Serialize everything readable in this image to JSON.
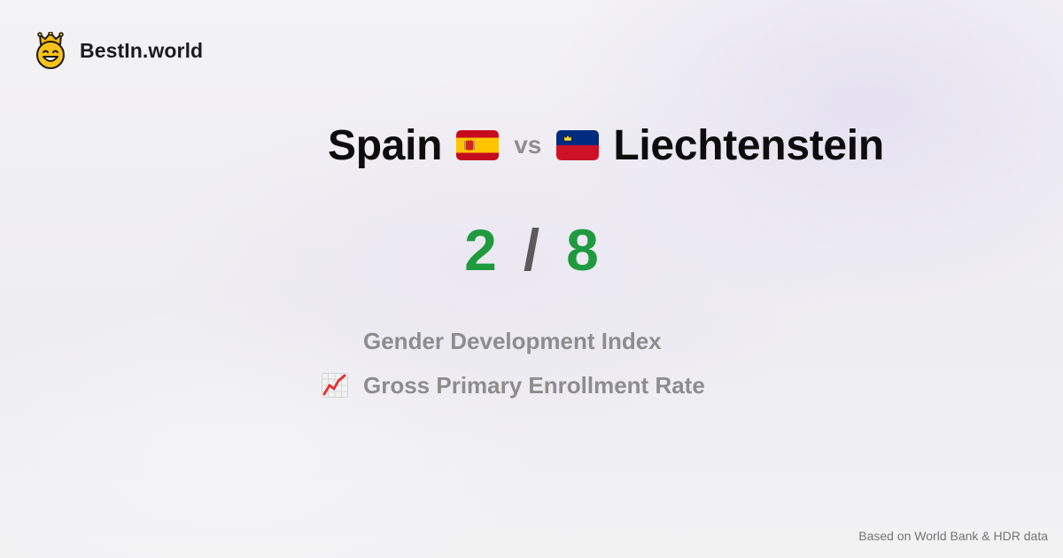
{
  "brand": {
    "name": "BestIn.world",
    "logo_icon": "crowned-smiley-icon"
  },
  "comparison": {
    "left": {
      "name": "Spain",
      "flag_icon": "flag-spain-icon"
    },
    "vs_label": "vs",
    "right": {
      "name": "Liechtenstein",
      "flag_icon": "flag-liechtenstein-icon"
    }
  },
  "score": {
    "left": "2",
    "separator": "/",
    "right": "8",
    "value_color": "#1f9a3f"
  },
  "metrics": [
    {
      "label": "Gender Development Index",
      "icon": ""
    },
    {
      "label": "Gross Primary Enrollment Rate",
      "icon": "chart-increasing-icon"
    }
  ],
  "footer": {
    "source": "Based on World Bank & HDR data"
  }
}
